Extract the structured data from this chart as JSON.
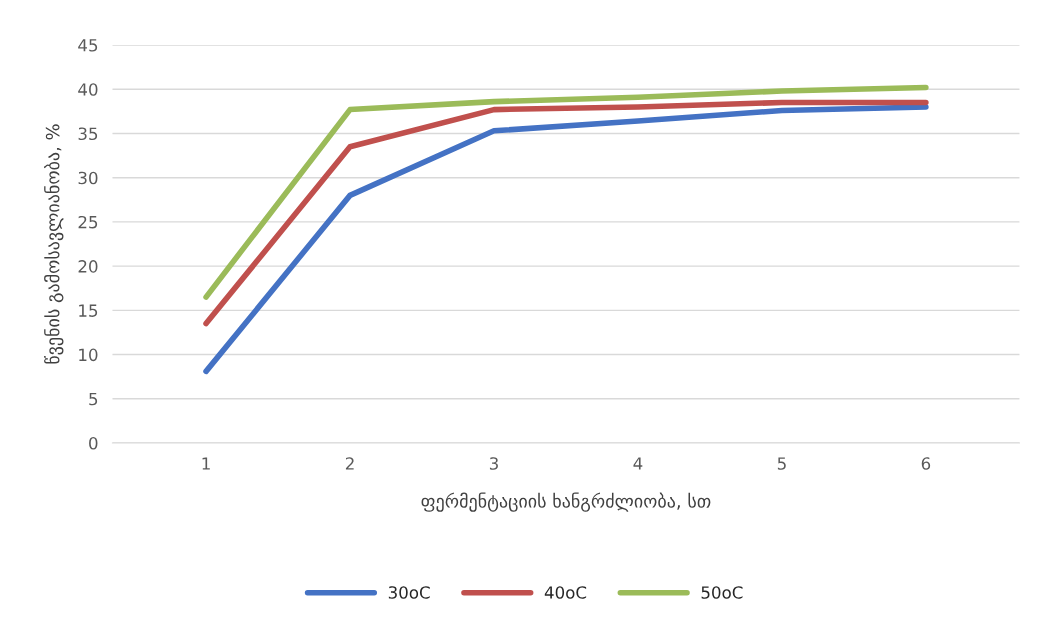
{
  "chart_data": {
    "type": "line",
    "xlabel": "ფერმენტაციის ხანგრძლიობა, სთ",
    "ylabel": "წვენის გამოსავლიანობა, %",
    "categories": [
      "1",
      "2",
      "3",
      "4",
      "5",
      "6"
    ],
    "series": [
      {
        "name": "30oC",
        "color": "#4472c4",
        "values": [
          8.1,
          28.0,
          35.3,
          36.4,
          37.6,
          38.0
        ]
      },
      {
        "name": "40oC",
        "color": "#c0504d",
        "values": [
          13.5,
          33.5,
          37.7,
          38.0,
          38.5,
          38.5
        ]
      },
      {
        "name": "50oC",
        "color": "#9bbb59",
        "values": [
          16.5,
          37.7,
          38.6,
          39.1,
          39.8,
          40.2
        ]
      }
    ],
    "ylim": [
      0,
      45
    ],
    "yticks": [
      0,
      5,
      10,
      15,
      20,
      25,
      30,
      35,
      40,
      45
    ],
    "grid": "y",
    "legend": "bottom",
    "marker": "none",
    "line_style": "solid"
  }
}
